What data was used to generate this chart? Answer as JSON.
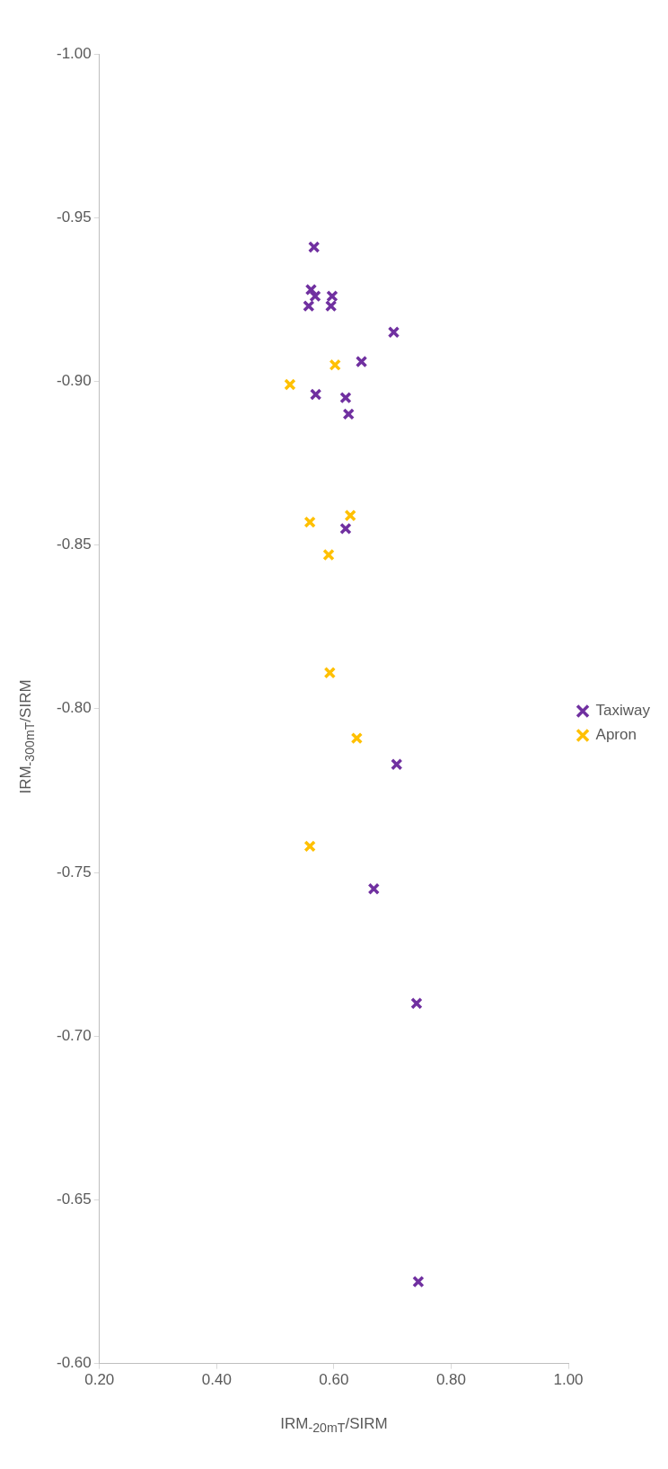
{
  "chart_data": {
    "type": "scatter",
    "xlabel": "IRM$_{-20mT}$/SIRM",
    "ylabel": "IRM$_{-300mT}$/SIRM",
    "xlim": [
      0.2,
      1.0
    ],
    "xticks": [
      {
        "value": 0.2,
        "label": "0.20"
      },
      {
        "value": 0.4,
        "label": "0.40"
      },
      {
        "value": 0.6,
        "label": "0.60"
      },
      {
        "value": 0.8,
        "label": "0.80"
      },
      {
        "value": 1.0,
        "label": "1.00"
      }
    ],
    "ylim": [
      -0.6,
      -1.0
    ],
    "yticks": [
      {
        "value": -1.0,
        "label": "-1.00"
      },
      {
        "value": -0.95,
        "label": "-0.95"
      },
      {
        "value": -0.9,
        "label": "-0.90"
      },
      {
        "value": -0.85,
        "label": "-0.85"
      },
      {
        "value": -0.8,
        "label": "-0.80"
      },
      {
        "value": -0.75,
        "label": "-0.75"
      },
      {
        "value": -0.7,
        "label": "-0.70"
      },
      {
        "value": -0.65,
        "label": "-0.65"
      },
      {
        "value": -0.6,
        "label": "-0.60"
      }
    ],
    "marker": "cross",
    "legend": "right",
    "series": [
      {
        "name": "Taxiway",
        "color": "#7030a0",
        "x": [
          0.566,
          0.561,
          0.568,
          0.557,
          0.597,
          0.595,
          0.702,
          0.647,
          0.569,
          0.62,
          0.625,
          0.62,
          0.707,
          0.668,
          0.741,
          0.744
        ],
        "values": [
          -0.941,
          -0.928,
          -0.926,
          -0.923,
          -0.926,
          -0.923,
          -0.915,
          -0.906,
          -0.896,
          -0.895,
          -0.89,
          -0.855,
          -0.783,
          -0.745,
          -0.71,
          -0.625
        ]
      },
      {
        "name": "Apron",
        "color": "#ffc000",
        "x": [
          0.602,
          0.525,
          0.559,
          0.628,
          0.591,
          0.593,
          0.639,
          0.559
        ],
        "values": [
          -0.905,
          -0.899,
          -0.857,
          -0.859,
          -0.847,
          -0.811,
          -0.791,
          -0.758
        ]
      }
    ]
  }
}
